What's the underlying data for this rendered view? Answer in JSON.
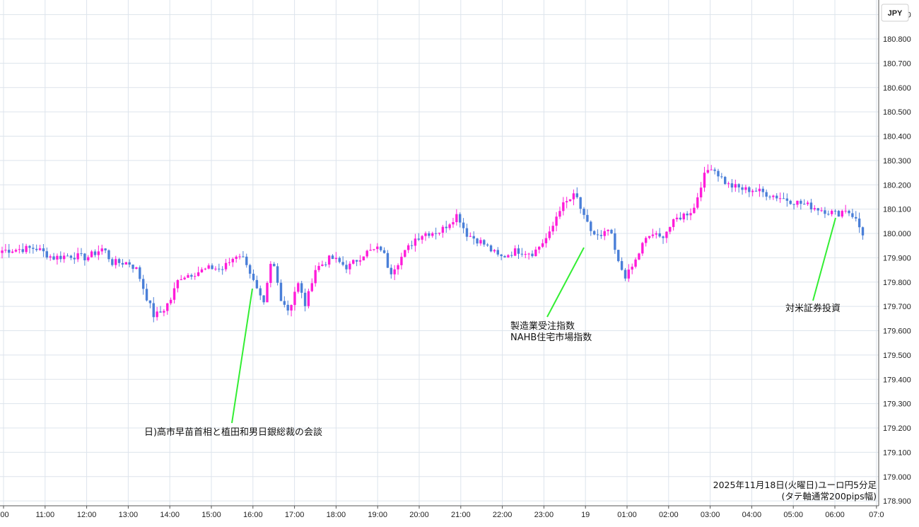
{
  "chart_data": {
    "type": "candlestick",
    "currency_label": "JPY",
    "caption_line1": "2025年11月18日(火曜日)ユーロ円5分足",
    "caption_line2": "(タテ軸通常200pips幅)",
    "ylim": [
      178.88,
      180.96
    ],
    "y_ticks": [
      "180.900",
      "180.800",
      "180.700",
      "180.600",
      "180.500",
      "180.400",
      "180.300",
      "180.200",
      "180.100",
      "180.000",
      "179.900",
      "179.800",
      "179.700",
      "179.600",
      "179.500",
      "179.400",
      "179.300",
      "179.200",
      "179.100",
      "179.000",
      "178.900"
    ],
    "x_ticks": [
      ":00",
      "11:00",
      "12:00",
      "13:00",
      "14:00",
      "15:00",
      "16:00",
      "17:00",
      "18:00",
      "19:00",
      "20:00",
      "21:00",
      "22:00",
      "23:00",
      "19",
      "01:00",
      "02:00",
      "03:00",
      "04:00",
      "05:00",
      "06:00",
      "07:0"
    ],
    "colors": {
      "up": "#ff1cd9",
      "down": "#4a7fd8",
      "grid": "#dde4ec",
      "pointer": "#33ee33"
    },
    "close_path": [
      [
        0,
        179.93
      ],
      [
        4,
        179.94
      ],
      [
        6,
        179.9
      ],
      [
        8,
        179.91
      ],
      [
        10,
        179.9
      ],
      [
        12,
        179.94
      ],
      [
        13,
        179.88
      ],
      [
        15,
        179.88
      ],
      [
        16,
        179.85
      ],
      [
        17,
        179.75
      ],
      [
        18,
        179.66
      ],
      [
        19,
        179.68
      ],
      [
        20,
        179.73
      ],
      [
        21,
        179.82
      ],
      [
        23,
        179.84
      ],
      [
        25,
        179.86
      ],
      [
        26,
        179.85
      ],
      [
        28,
        179.92
      ],
      [
        29,
        179.88
      ],
      [
        30,
        179.78
      ],
      [
        31,
        179.7
      ],
      [
        32,
        179.9
      ],
      [
        33,
        179.74
      ],
      [
        34,
        179.68
      ],
      [
        35,
        179.8
      ],
      [
        36,
        179.7
      ],
      [
        37,
        179.85
      ],
      [
        39,
        179.9
      ],
      [
        41,
        179.86
      ],
      [
        43,
        179.92
      ],
      [
        45,
        179.94
      ],
      [
        46,
        179.84
      ],
      [
        49,
        179.98
      ],
      [
        50,
        180.0
      ],
      [
        52,
        180.01
      ],
      [
        54,
        180.08
      ],
      [
        55,
        180.0
      ],
      [
        57,
        179.96
      ],
      [
        59,
        179.9
      ],
      [
        61,
        179.93
      ],
      [
        63,
        179.92
      ],
      [
        65,
        180.0
      ],
      [
        66,
        180.1
      ],
      [
        68,
        180.16
      ],
      [
        69,
        180.06
      ],
      [
        70,
        180.0
      ],
      [
        71,
        179.98
      ],
      [
        72,
        180.02
      ],
      [
        73,
        179.88
      ],
      [
        74,
        179.82
      ],
      [
        75,
        179.88
      ],
      [
        76,
        179.96
      ],
      [
        77,
        180.0
      ],
      [
        78,
        179.98
      ],
      [
        79,
        180.02
      ],
      [
        80,
        180.06
      ],
      [
        81,
        180.08
      ],
      [
        82,
        180.1
      ],
      [
        83,
        180.22
      ],
      [
        84,
        180.28
      ],
      [
        85,
        180.24
      ],
      [
        86,
        180.2
      ],
      [
        87,
        180.19
      ],
      [
        88,
        180.18
      ],
      [
        89,
        180.18
      ],
      [
        91,
        180.16
      ],
      [
        93,
        180.14
      ],
      [
        95,
        180.12
      ],
      [
        97,
        180.1
      ],
      [
        99,
        180.08
      ],
      [
        100,
        180.1
      ],
      [
        101,
        180.07
      ],
      [
        102,
        180.0
      ]
    ],
    "annotations": [
      {
        "text": "日)高市早苗首相と植田和男日銀総裁の会談"
      },
      {
        "text": "製造業受注指数"
      },
      {
        "text": "NAHB住宅市場指数"
      },
      {
        "text": "対米証券投資"
      }
    ]
  }
}
